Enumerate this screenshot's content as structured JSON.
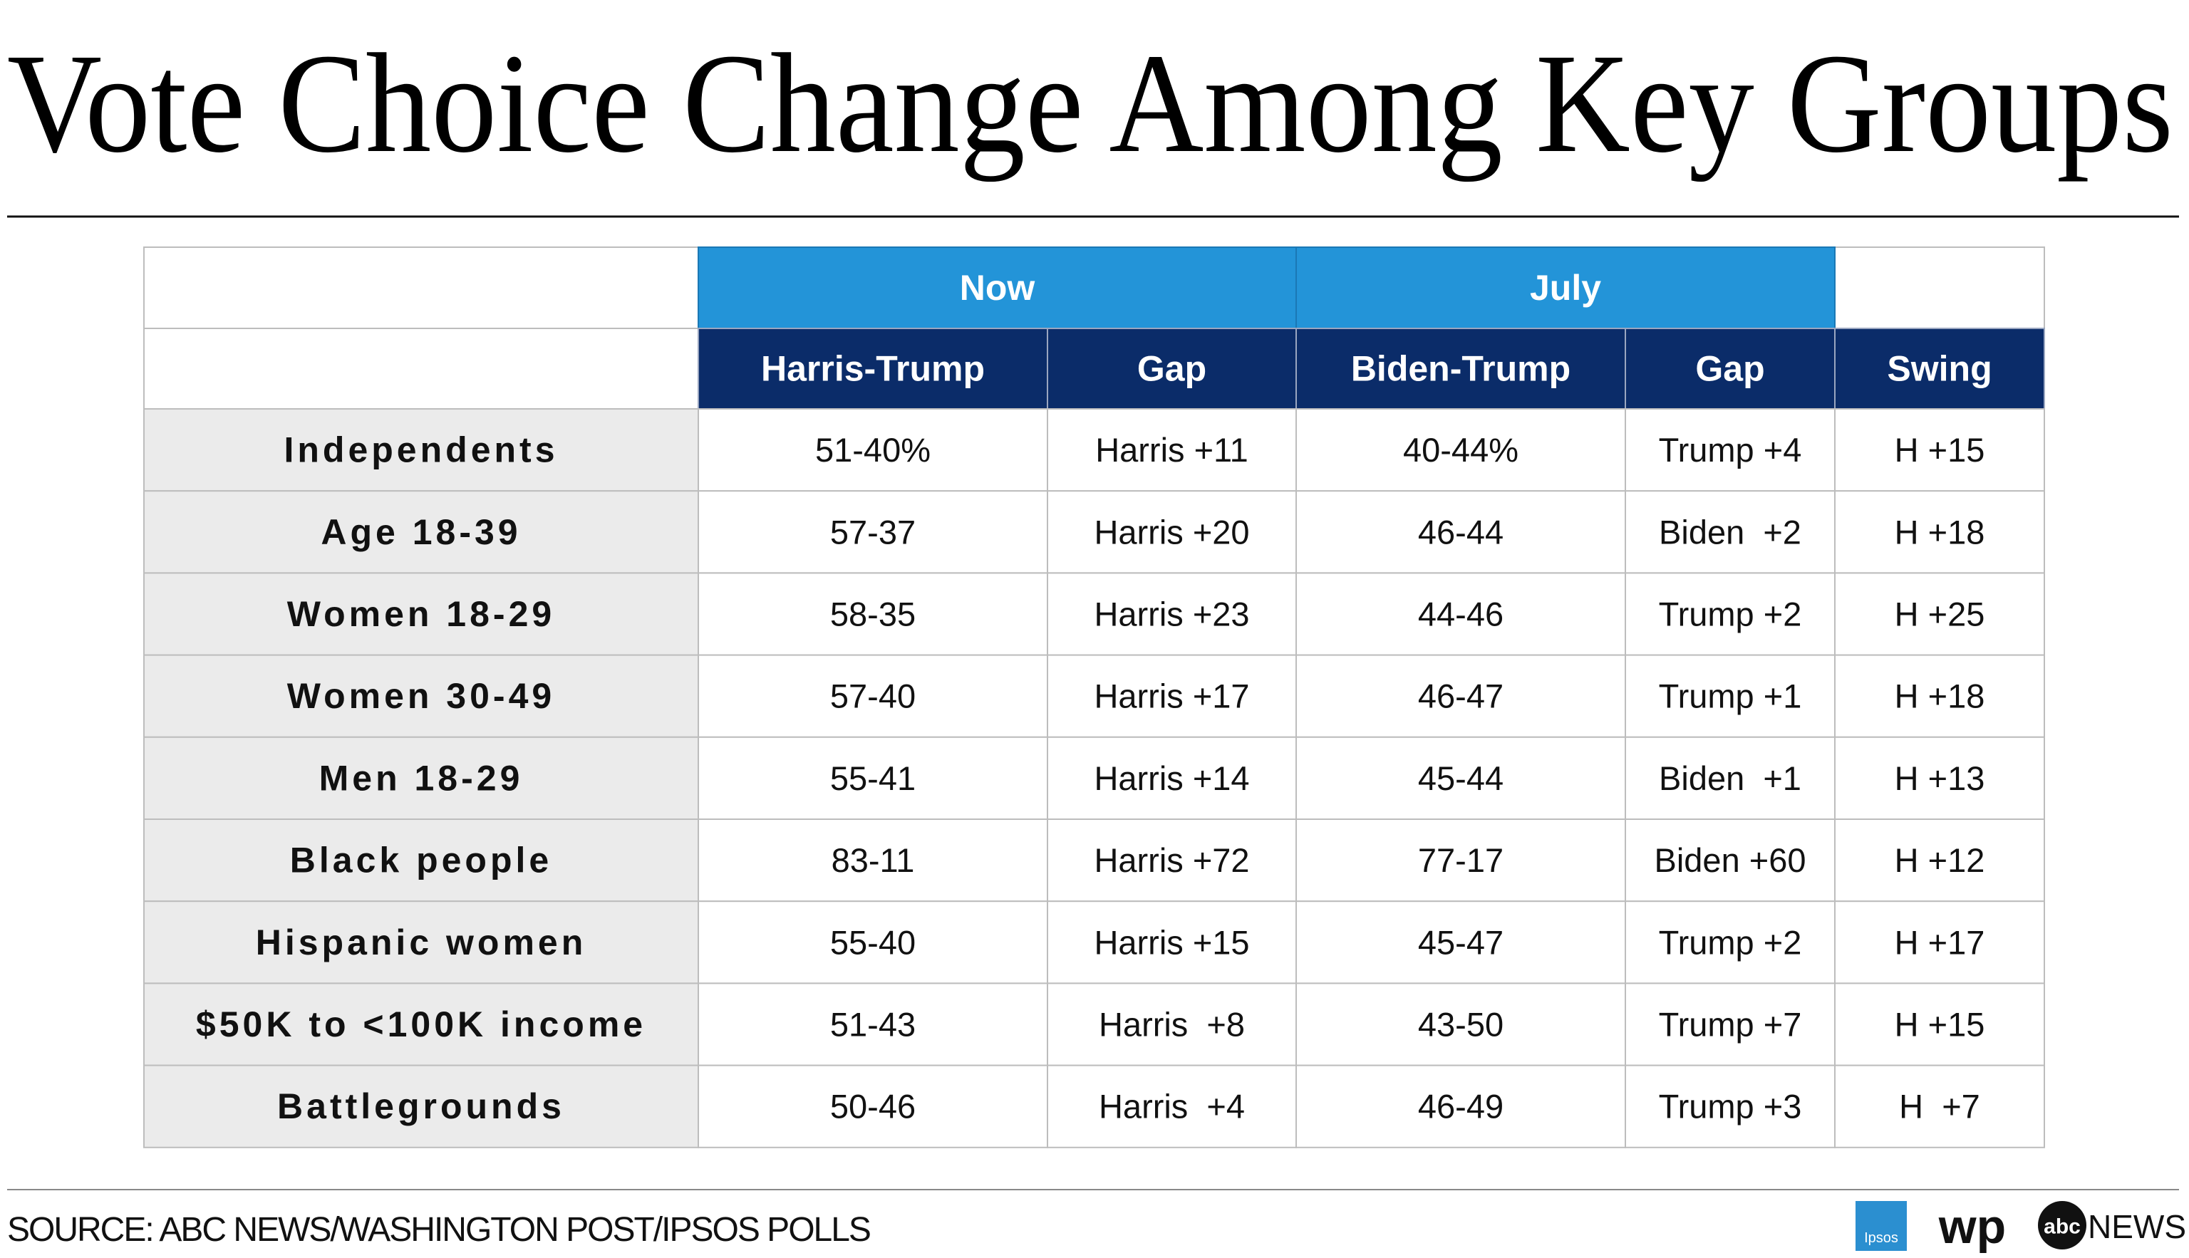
{
  "title": "Vote Choice Change Among Key Groups",
  "table": {
    "groups": [
      "Now",
      "July"
    ],
    "columns": [
      "Harris-Trump",
      "Gap",
      "Biden-Trump",
      "Gap",
      "Swing"
    ],
    "rows": [
      [
        "Independents",
        "51-40%",
        "Harris +11",
        "40-44%",
        "Trump +4",
        "H +15"
      ],
      [
        "Age 18-39",
        "57-37",
        "Harris +20",
        "46-44",
        "Biden  +2",
        "H +18"
      ],
      [
        "Women 18-29",
        "58-35",
        "Harris +23",
        "44-46",
        "Trump +2",
        "H +25"
      ],
      [
        "Women 30-49",
        "57-40",
        "Harris +17",
        "46-47",
        "Trump +1",
        "H +18"
      ],
      [
        "Men 18-29",
        "55-41",
        "Harris +14",
        "45-44",
        "Biden  +1",
        "H +13"
      ],
      [
        "Black people",
        "83-11",
        "Harris +72",
        "77-17",
        "Biden +60",
        "H +12"
      ],
      [
        "Hispanic women",
        "55-40",
        "Harris +15",
        "45-47",
        "Trump +2",
        "H +17"
      ],
      [
        "$50K to <100K income",
        "51-43",
        "Harris  +8",
        "43-50",
        "Trump +7",
        "H +15"
      ],
      [
        "Battlegrounds",
        "50-46",
        "Harris  +4",
        "46-49",
        "Trump +3",
        "H  +7"
      ]
    ]
  },
  "source": "SOURCE: ABC NEWS/WASHINGTON POST/IPSOS POLLS",
  "logos": {
    "ipsos": "Ipsos",
    "wp": "wp",
    "abc": "abc",
    "news": "NEWS"
  }
}
